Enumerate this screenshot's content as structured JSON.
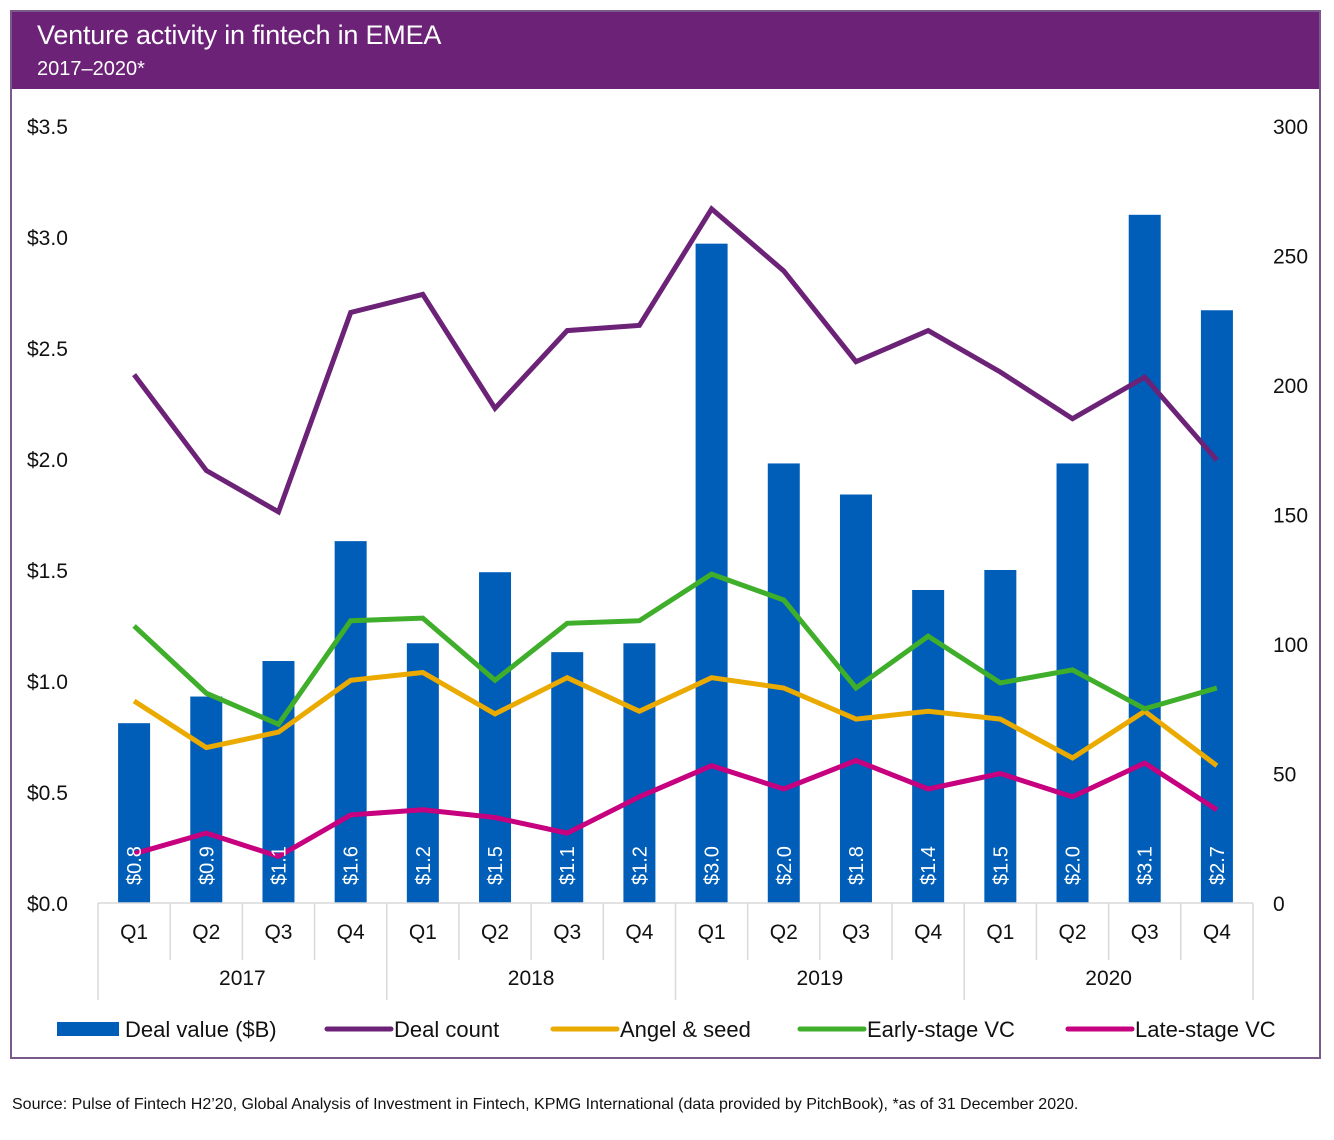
{
  "header": {
    "title": "Venture activity in fintech in EMEA",
    "subtitle": "2017–2020*"
  },
  "source": "Source: Pulse of Fintech H2’20, Global Analysis of Investment in Fintech, KPMG International (data provided by PitchBook), *as of 31 December 2020.",
  "colors": {
    "header": "#6b2277",
    "deal_value": "#005eb8",
    "deal_count": "#6b2277",
    "angel_seed": "#eaaa00",
    "early_stage": "#3fae2a",
    "late_stage": "#c6007e"
  },
  "chart_data": {
    "type": "bar+line",
    "title": "Venture activity in fintech in EMEA",
    "subtitle": "2017–2020*",
    "categories": [
      "Q1",
      "Q2",
      "Q3",
      "Q4",
      "Q1",
      "Q2",
      "Q3",
      "Q4",
      "Q1",
      "Q2",
      "Q3",
      "Q4",
      "Q1",
      "Q2",
      "Q3",
      "Q4"
    ],
    "year_groups": [
      {
        "label": "2017",
        "span": 4
      },
      {
        "label": "2018",
        "span": 4
      },
      {
        "label": "2019",
        "span": 4
      },
      {
        "label": "2020",
        "span": 4
      }
    ],
    "y_left": {
      "label": "",
      "ylim": [
        0,
        3.5
      ],
      "ticks": [
        "$0.0",
        "$0.5",
        "$1.0",
        "$1.5",
        "$2.0",
        "$2.5",
        "$3.0",
        "$3.5"
      ],
      "tick_values": [
        0,
        0.5,
        1,
        1.5,
        2,
        2.5,
        3,
        3.5
      ]
    },
    "y_right": {
      "label": "",
      "ylim": [
        0,
        300
      ],
      "ticks": [
        "0",
        "50",
        "100",
        "150",
        "200",
        "250",
        "300"
      ],
      "tick_values": [
        0,
        50,
        100,
        150,
        200,
        250,
        300
      ]
    },
    "grid": false,
    "legend_position": "bottom",
    "series": [
      {
        "name": "Deal value ($B)",
        "type": "bar",
        "axis": "left",
        "color_key": "deal_value",
        "values": [
          0.81,
          0.93,
          1.09,
          1.63,
          1.17,
          1.49,
          1.13,
          1.17,
          2.97,
          1.98,
          1.84,
          1.41,
          1.5,
          1.98,
          3.1,
          2.67
        ],
        "labels": [
          "$0.8",
          "$0.9",
          "$1.1",
          "$1.6",
          "$1.2",
          "$1.5",
          "$1.1",
          "$1.2",
          "$3.0",
          "$2.0",
          "$1.8",
          "$1.4",
          "$1.5",
          "$2.0",
          "$3.1",
          "$2.7"
        ]
      },
      {
        "name": "Deal count",
        "type": "line",
        "axis": "right",
        "color_key": "deal_count",
        "values": [
          204,
          167,
          151,
          228,
          235,
          191,
          221,
          223,
          268,
          244,
          209,
          221,
          205,
          187,
          203,
          171
        ]
      },
      {
        "name": "Angel & seed",
        "type": "line",
        "axis": "right",
        "color_key": "angel_seed",
        "values": [
          78,
          60,
          66,
          86,
          89,
          73,
          87,
          74,
          87,
          83,
          71,
          74,
          71,
          56,
          74,
          53
        ]
      },
      {
        "name": "Early-stage VC",
        "type": "line",
        "axis": "right",
        "color_key": "early_stage",
        "values": [
          107,
          81,
          69,
          109,
          110,
          86,
          108,
          109,
          127,
          117,
          83,
          103,
          85,
          90,
          75,
          83
        ]
      },
      {
        "name": "Late-stage VC",
        "type": "line",
        "axis": "right",
        "color_key": "late_stage",
        "values": [
          19,
          27,
          18,
          34,
          36,
          33,
          27,
          41,
          53,
          44,
          55,
          44,
          50,
          41,
          54,
          36
        ]
      }
    ]
  }
}
